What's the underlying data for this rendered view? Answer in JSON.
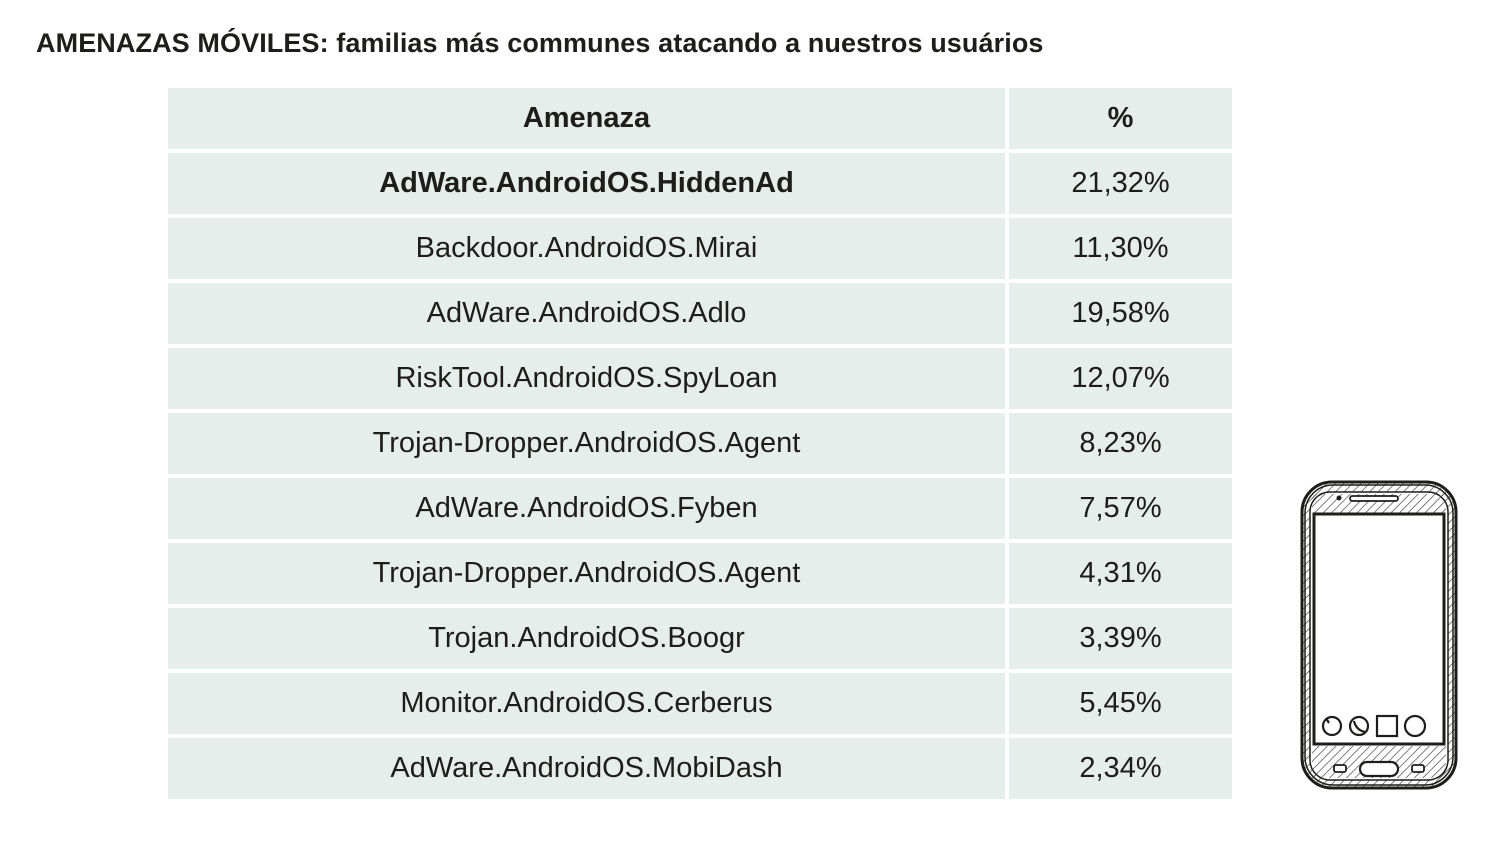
{
  "title": "AMENAZAS MÓVILES: familias más communes atacando a nuestros usuários",
  "table": {
    "headers": [
      "Amenaza",
      "%"
    ],
    "rows": [
      {
        "threat": "AdWare.AndroidOS.HiddenAd",
        "percent": "21,32%"
      },
      {
        "threat": "Backdoor.AndroidOS.Mirai",
        "percent": "11,30%"
      },
      {
        "threat": "AdWare.AndroidOS.Adlo",
        "percent": "19,58%"
      },
      {
        "threat": "RiskTool.AndroidOS.SpyLoan",
        "percent": "12,07%"
      },
      {
        "threat": "Trojan-Dropper.AndroidOS.Agent",
        "percent": "8,23%"
      },
      {
        "threat": "AdWare.AndroidOS.Fyben",
        "percent": "7,57%"
      },
      {
        "threat": "Trojan-Dropper.AndroidOS.Agent",
        "percent": "4,31%"
      },
      {
        "threat": "Trojan.AndroidOS.Boogr",
        "percent": "3,39%"
      },
      {
        "threat": "Monitor.AndroidOS.Cerberus",
        "percent": "5,45%"
      },
      {
        "threat": "AdWare.AndroidOS.MobiDash",
        "percent": "2,34%"
      }
    ]
  },
  "illustration": {
    "icon": "smartphone-sketch-icon",
    "app_icons": [
      "back-icon",
      "phone-call-icon",
      "square-icon",
      "circle-icon"
    ]
  },
  "colors": {
    "table_background": "#e6eeec",
    "text": "#1d1d1b"
  }
}
